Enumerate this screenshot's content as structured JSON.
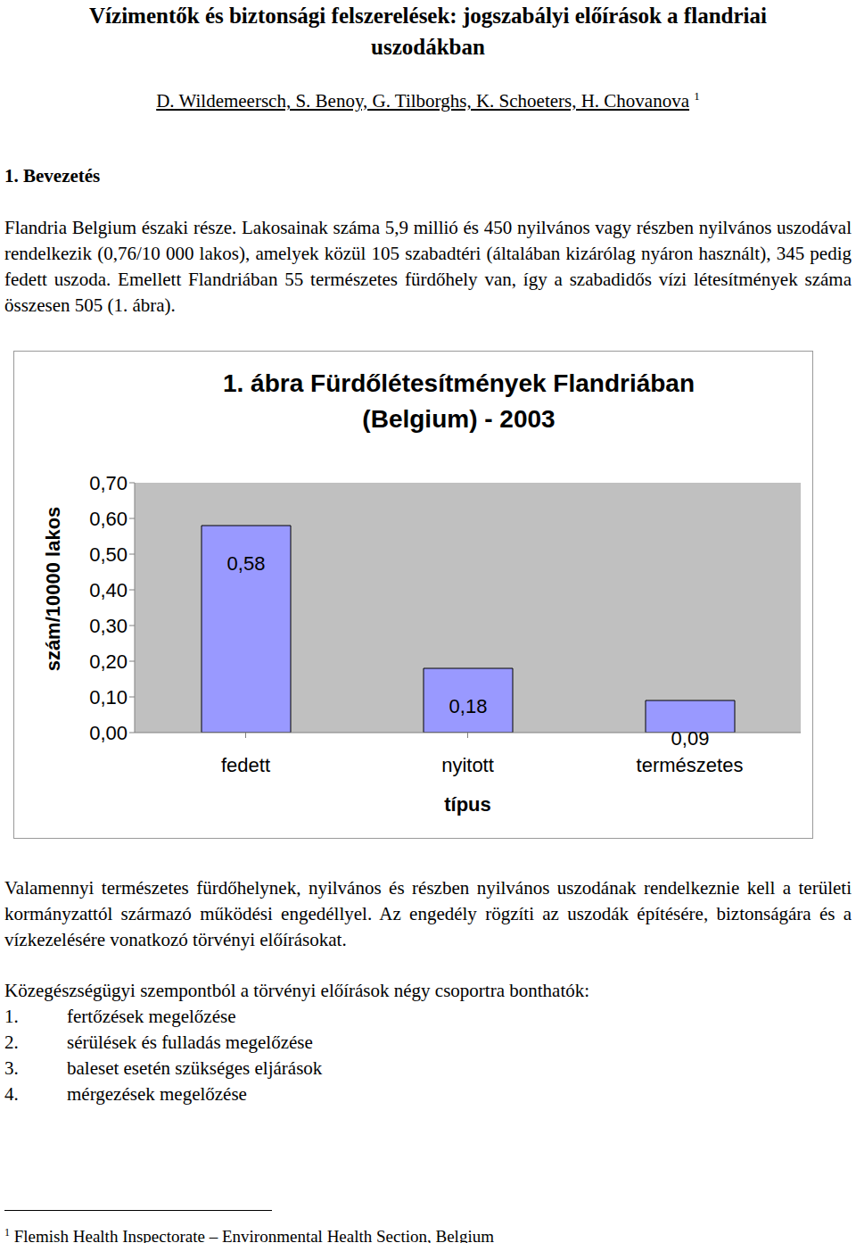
{
  "header": {
    "title_lines": [
      "Vízimentők és biztonsági felszerelések: jogszabályi előírások a flandriai",
      "uszodákban"
    ],
    "authors": "D. Wildemeersch, S. Benoy, G. Tilborghs, K. Schoeters, H. Chovanova",
    "authors_note_mark": "1"
  },
  "section_heading": "1. Bevezetés",
  "paragraph_1": "Flandria Belgium északi része. Lakosainak száma 5,9 millió és 450 nyilvános vagy részben nyilvános uszodával rendelkezik (0,76/10 000 lakos), amelyek közül 105 szabadtéri (általában kizárólag nyáron használt), 345 pedig fedett uszoda. Emellett Flandriában 55 természetes fürdőhely van, így a szabadidős vízi létesítmények száma összesen 505 (1. ábra).",
  "chart_data": {
    "type": "bar",
    "title_lines": [
      "1. ábra Fürdőlétesítmények Flandriában",
      "(Belgium) - 2003"
    ],
    "x_label": "típus",
    "y_label": "szám/10000 lakos",
    "categories": [
      "fedett",
      "nyitott",
      "természetes"
    ],
    "values": [
      0.58,
      0.18,
      0.09
    ],
    "value_labels": [
      "0,58",
      "0,18",
      "0,09"
    ],
    "data_labels": true,
    "color": "#9999ff",
    "grid": false,
    "ylim": [
      0,
      0.7
    ],
    "yticks": [
      {
        "value": 0,
        "label": "0,00"
      },
      {
        "value": 0.1,
        "label": "0,10"
      },
      {
        "value": 0.2,
        "label": "0,20"
      },
      {
        "value": 0.3,
        "label": "0,30"
      },
      {
        "value": 0.4,
        "label": "0,40"
      },
      {
        "value": 0.5,
        "label": "0,50"
      },
      {
        "value": 0.6,
        "label": "0,60"
      },
      {
        "value": 0.7,
        "label": "0,70"
      }
    ]
  },
  "paragraph_2": "Valamennyi természetes fürdőhelynek, nyilvános és részben nyilvános uszodának rendelkeznie kell a területi kormányzattól származó működési engedéllyel. Az engedély rögzíti az uszodák építésére, biztonságára és a vízkezelésére vonatkozó törvényi előírásokat.",
  "list_intro": "Közegészségügyi szempontból a törvényi előírások négy csoportra bonthatók:",
  "list": [
    {
      "number": "1.",
      "text": "fertőzések megelőzése"
    },
    {
      "number": "2.",
      "text": "sérülések és fulladás megelőzése"
    },
    {
      "number": "3.",
      "text": "baleset esetén szükséges eljárások"
    },
    {
      "number": "4.",
      "text": "mérgezések megelőzése"
    }
  ],
  "footnote": {
    "mark": "1",
    "text": "Flemish Health Inspectorate – Environmental Health Section, Belgium"
  }
}
